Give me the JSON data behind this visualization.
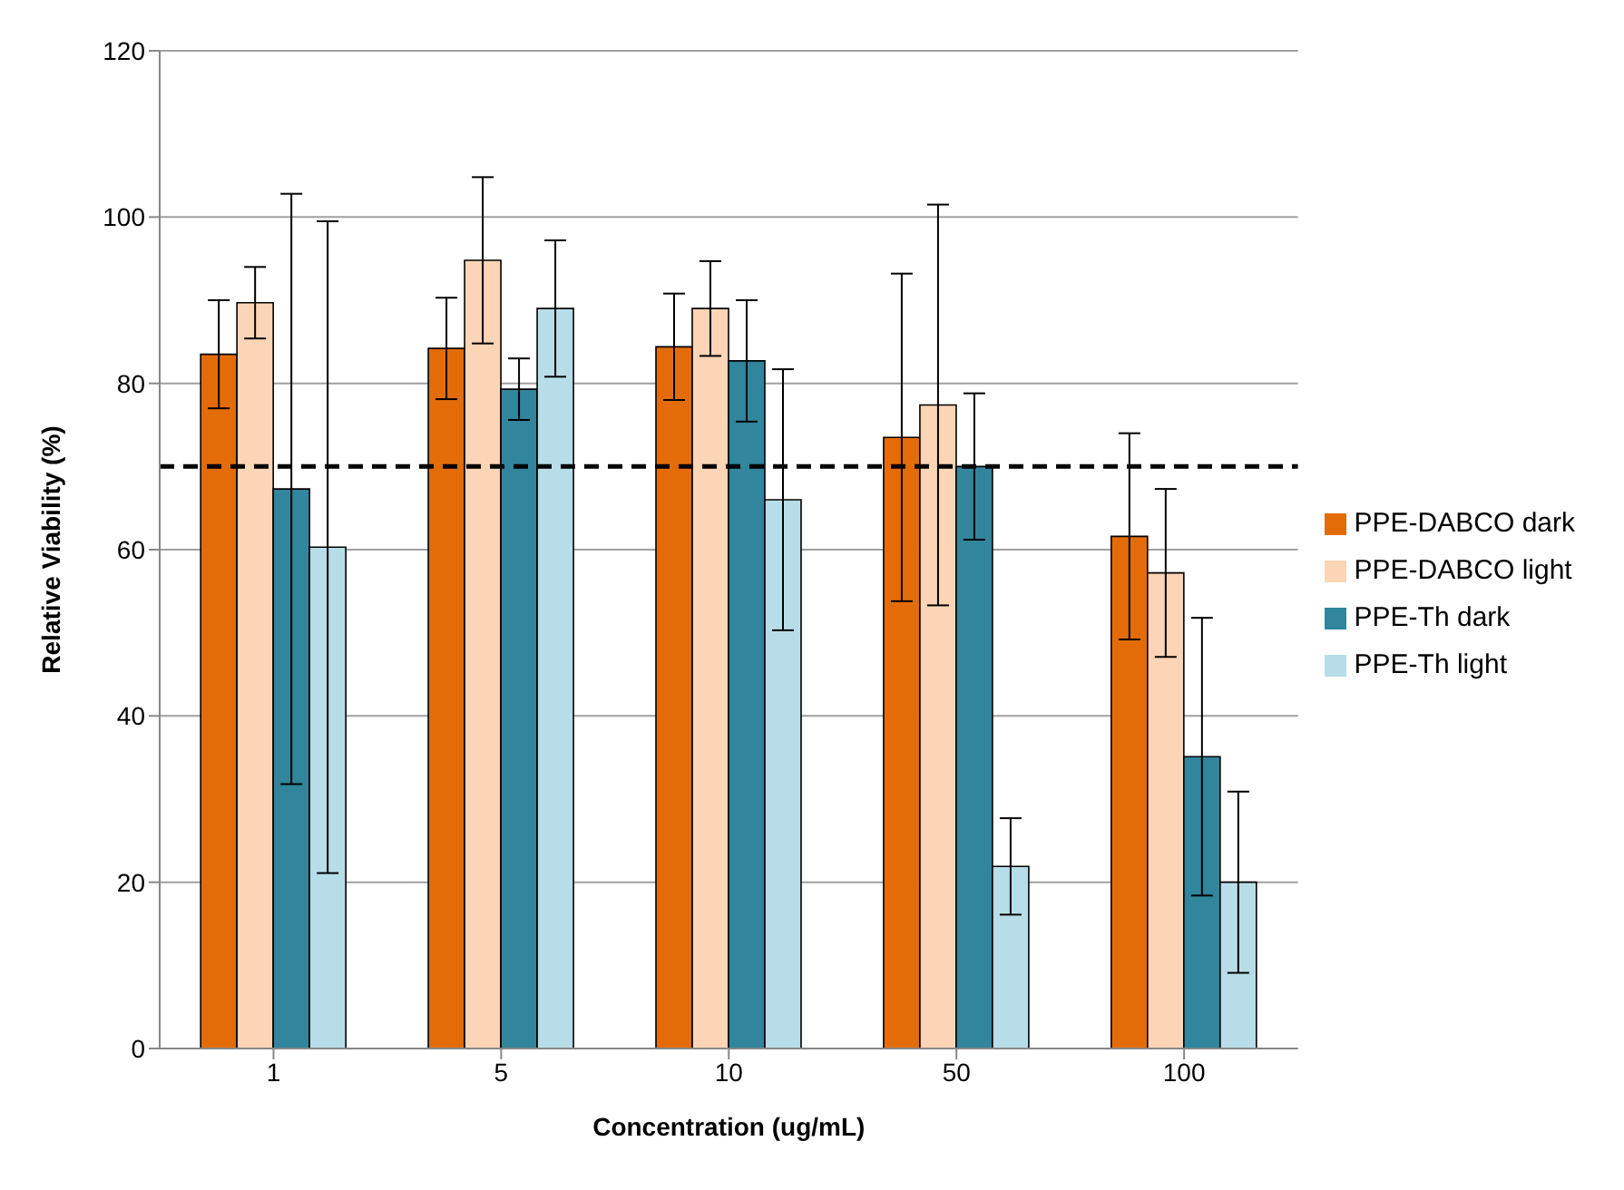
{
  "chart_data": {
    "type": "bar",
    "xlabel": "Concentration (ug/mL)",
    "ylabel": "Relative Viability (%)",
    "categories": [
      "1",
      "5",
      "10",
      "50",
      "100"
    ],
    "series": [
      {
        "name": "PPE-DABCO dark",
        "color": "#e36c09",
        "values": [
          83.5,
          84.2,
          84.4,
          73.5,
          61.6
        ],
        "errors": [
          6.5,
          6.1,
          6.4,
          19.7,
          12.4
        ]
      },
      {
        "name": "PPE-DABCO light",
        "color": "#fbd5b5",
        "values": [
          89.7,
          94.8,
          89,
          77.4,
          57.2
        ],
        "errors": [
          4.3,
          10,
          5.7,
          24.1,
          10.1
        ]
      },
      {
        "name": "PPE-Th dark",
        "color": "#31859c",
        "values": [
          67.3,
          79.3,
          82.7,
          70,
          35.1
        ],
        "errors": [
          35.5,
          3.7,
          7.3,
          8.8,
          16.7
        ]
      },
      {
        "name": "PPE-Th light",
        "color": "#b7dee8",
        "values": [
          60.3,
          89,
          66,
          21.9,
          20
        ],
        "errors": [
          39.2,
          8.2,
          15.7,
          5.8,
          10.9
        ]
      }
    ],
    "ylim": [
      0,
      120
    ],
    "yticks": [
      0,
      20,
      40,
      60,
      80,
      100,
      120
    ],
    "grid": "y",
    "legend": "right",
    "ref_lines": [
      {
        "axis": "y",
        "value": 70,
        "color": "#000000",
        "line_style": "dashed"
      }
    ]
  }
}
